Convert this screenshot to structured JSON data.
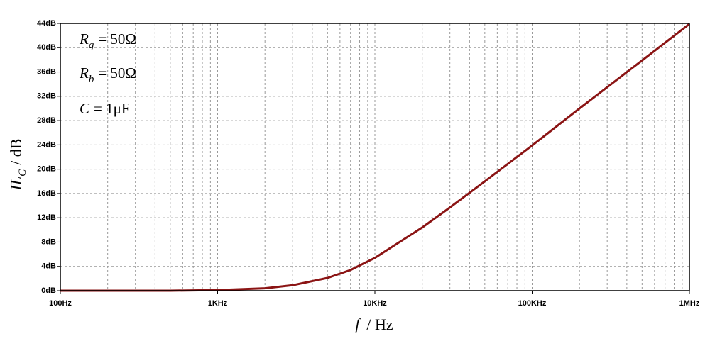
{
  "chart_data": {
    "type": "line",
    "x": [
      100,
      200,
      500,
      1000,
      2000,
      3000,
      5000,
      7000,
      10000,
      20000,
      30000,
      50000,
      100000,
      200000,
      500000,
      1000000
    ],
    "values": [
      0.0,
      0.0,
      0.0,
      0.1,
      0.4,
      0.9,
      2.1,
      3.4,
      5.4,
      10.4,
      13.7,
      18.0,
      23.9,
      30.0,
      37.9,
      43.9
    ],
    "color": "#8b1414",
    "xlog": true,
    "xlim": [
      100,
      1000000
    ],
    "xticks": [
      {
        "value": 100,
        "label": "100Hz"
      },
      {
        "value": 1000,
        "label": "1KHz"
      },
      {
        "value": 10000,
        "label": "10KHz"
      },
      {
        "value": 100000,
        "label": "100KHz"
      },
      {
        "value": 1000000,
        "label": "1MHz"
      }
    ],
    "ylim": [
      0,
      44
    ],
    "yticks": [
      {
        "value": 0,
        "label": "0dB"
      },
      {
        "value": 4,
        "label": "4dB"
      },
      {
        "value": 8,
        "label": "8dB"
      },
      {
        "value": 12,
        "label": "12dB"
      },
      {
        "value": 16,
        "label": "16dB"
      },
      {
        "value": 20,
        "label": "20dB"
      },
      {
        "value": 24,
        "label": "24dB"
      },
      {
        "value": 28,
        "label": "28dB"
      },
      {
        "value": 32,
        "label": "32dB"
      },
      {
        "value": 36,
        "label": "36dB"
      },
      {
        "value": 40,
        "label": "40dB"
      },
      {
        "value": 44,
        "label": "44dB"
      }
    ],
    "grid": true,
    "x_label": {
      "symbol": "f",
      "unit": "/ Hz"
    },
    "y_label": {
      "symbol": "IL",
      "subscript": "C",
      "unit": "/ dB"
    },
    "annotations": [
      {
        "symbol": "R",
        "subscript": "g",
        "text": "= 50Ω"
      },
      {
        "symbol": "R",
        "subscript": "b",
        "text": "= 50Ω"
      },
      {
        "symbol": "C",
        "text": "= 1μF"
      }
    ]
  }
}
